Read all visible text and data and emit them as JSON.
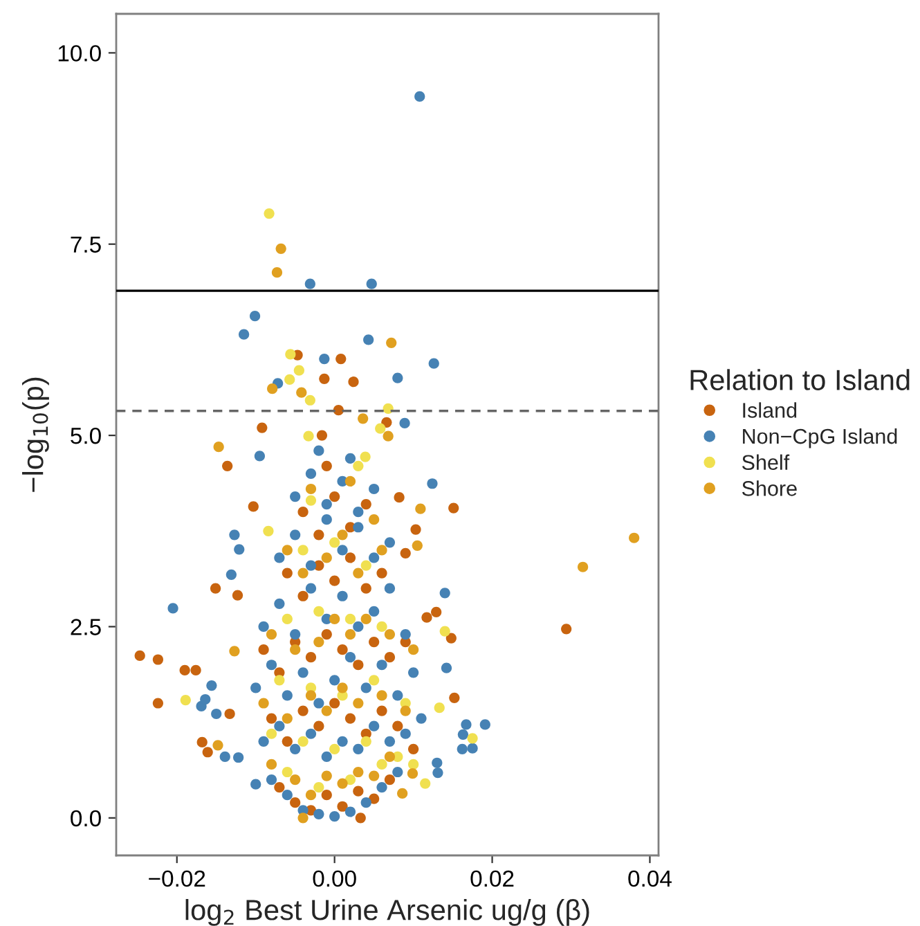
{
  "chart_data": {
    "type": "scatter",
    "xlabel": "log$_{2}$ Best Urine Arsenic ug/g (β)",
    "ylabel": "−log$_{10}$(p)",
    "legend_title": "Relation to Island",
    "legend": "right",
    "marker": "circle",
    "grid": false,
    "xlim": [
      -0.0277,
      0.0411
    ],
    "ylim": [
      -0.49,
      10.51
    ],
    "xticks": [
      {
        "value": -0.02,
        "label": "−0.02"
      },
      {
        "value": 0.0,
        "label": "0.00"
      },
      {
        "value": 0.02,
        "label": "0.02"
      },
      {
        "value": 0.04,
        "label": "0.04"
      }
    ],
    "yticks": [
      {
        "value": 0.0,
        "label": "0.0"
      },
      {
        "value": 2.5,
        "label": "2.5"
      },
      {
        "value": 5.0,
        "label": "5.0"
      },
      {
        "value": 7.5,
        "label": "7.5"
      },
      {
        "value": 10.0,
        "label": "10.0"
      }
    ],
    "ref_lines": [
      {
        "axis": "y",
        "value": 6.89,
        "color": "#000000",
        "line_style": "solid"
      },
      {
        "axis": "y",
        "value": 5.32,
        "color": "#666666",
        "line_style": "dashed"
      }
    ],
    "series": [
      {
        "name": "Island",
        "color": "#c8640f",
        "x": [
          0.0008,
          -0.0013,
          0.0024,
          -0.0092,
          -0.0047,
          -0.0016,
          0.0066,
          0.0005,
          -0.0136,
          0.0294,
          -0.0247,
          -0.0224,
          -0.019,
          -0.0176,
          -0.0224,
          -0.0168,
          -0.0161,
          -0.0151,
          -0.0103,
          0.0151,
          0.0152,
          0.0148,
          0.0129,
          0.0117,
          0.009,
          0.0103,
          0.0082,
          -0.0123,
          -0.0133,
          0.0033,
          -0.007,
          -0.005,
          -0.003,
          -0.001,
          0.001,
          0.003,
          0.005,
          0.007,
          -0.008,
          -0.006,
          -0.004,
          -0.002,
          0.0,
          0.002,
          0.004,
          0.006,
          0.008,
          0.01,
          -0.009,
          -0.007,
          -0.005,
          -0.003,
          -0.001,
          0.001,
          0.003,
          0.005,
          0.007,
          0.009,
          -0.006,
          -0.004,
          -0.002,
          0.0,
          0.002,
          0.004,
          0.006,
          -0.004,
          -0.002,
          0.0,
          0.002,
          0.004,
          -0.001
        ],
        "values": [
          6.0,
          5.74,
          5.7,
          5.1,
          6.05,
          5.0,
          5.17,
          5.33,
          4.6,
          2.47,
          2.12,
          2.07,
          1.93,
          1.93,
          1.5,
          0.99,
          0.86,
          3.0,
          4.07,
          4.05,
          1.57,
          2.35,
          2.69,
          2.62,
          3.46,
          3.77,
          4.19,
          2.91,
          1.36,
          0.0,
          0.4,
          0.2,
          0.1,
          0.3,
          0.15,
          0.35,
          0.25,
          0.5,
          1.3,
          1.0,
          1.4,
          1.2,
          1.5,
          1.3,
          1.1,
          1.4,
          1.2,
          0.9,
          2.2,
          1.9,
          2.3,
          2.1,
          2.4,
          2.2,
          2.0,
          2.3,
          2.1,
          2.3,
          3.2,
          2.9,
          3.3,
          3.1,
          3.4,
          3.0,
          3.2,
          4.0,
          3.7,
          4.2,
          3.8,
          4.1,
          4.6
        ]
      },
      {
        "name": "Non−CpG Island",
        "color": "#4682b4",
        "x": [
          0.0108,
          -0.0031,
          0.0047,
          -0.0101,
          -0.0115,
          0.0043,
          0.0126,
          -0.0013,
          0.008,
          -0.0072,
          0.0089,
          -0.0095,
          -0.0205,
          0.0191,
          0.0167,
          0.0163,
          0.0175,
          0.0162,
          0.014,
          0.0124,
          0.0142,
          -0.0169,
          -0.0164,
          -0.0156,
          -0.015,
          -0.0139,
          -0.0127,
          -0.0121,
          -0.0131,
          -0.0122,
          0.0131,
          0.013,
          -0.01,
          -0.008,
          -0.006,
          -0.004,
          -0.002,
          0.0,
          0.002,
          0.004,
          0.006,
          0.008,
          -0.009,
          -0.007,
          -0.005,
          -0.003,
          -0.001,
          0.001,
          0.003,
          0.005,
          0.007,
          0.009,
          0.011,
          -0.01,
          -0.008,
          -0.006,
          -0.004,
          -0.002,
          0.0,
          0.002,
          0.004,
          0.006,
          0.008,
          0.01,
          -0.009,
          -0.007,
          -0.005,
          -0.003,
          -0.001,
          0.001,
          0.003,
          0.005,
          0.007,
          0.009,
          -0.007,
          -0.005,
          -0.003,
          -0.001,
          0.001,
          0.003,
          0.005,
          0.007,
          -0.005,
          -0.003,
          -0.001,
          0.001,
          0.003,
          0.005,
          -0.002,
          0.002
        ],
        "values": [
          9.43,
          6.98,
          6.98,
          6.56,
          6.32,
          6.25,
          5.94,
          6.0,
          5.75,
          5.68,
          5.16,
          4.73,
          2.74,
          1.22,
          1.22,
          1.09,
          0.91,
          0.9,
          2.94,
          4.37,
          1.96,
          1.46,
          1.55,
          1.73,
          1.36,
          0.8,
          3.7,
          3.51,
          3.18,
          0.79,
          0.59,
          0.72,
          0.44,
          0.5,
          0.3,
          0.1,
          0.05,
          0.02,
          0.08,
          0.2,
          0.4,
          0.6,
          1.0,
          1.2,
          0.9,
          1.1,
          0.8,
          1.0,
          0.9,
          1.2,
          1.0,
          1.1,
          1.3,
          1.7,
          2.0,
          1.6,
          1.9,
          1.5,
          1.8,
          2.1,
          1.7,
          2.0,
          1.6,
          1.9,
          2.5,
          2.8,
          2.4,
          3.0,
          2.6,
          2.9,
          2.5,
          2.7,
          3.0,
          2.4,
          3.4,
          3.7,
          3.3,
          3.9,
          3.5,
          3.8,
          3.4,
          3.6,
          4.2,
          4.5,
          4.1,
          4.4,
          4.0,
          4.3,
          4.8,
          4.7
        ]
      },
      {
        "name": "Shelf",
        "color": "#f0e050",
        "x": [
          -0.0083,
          -0.0056,
          -0.0045,
          -0.0057,
          -0.0031,
          0.0068,
          0.0058,
          -0.0033,
          0.0039,
          -0.0189,
          0.0175,
          0.014,
          0.0133,
          0.0115,
          0.01,
          -0.0084,
          -0.006,
          -0.002,
          0.002,
          0.006,
          -0.008,
          -0.004,
          0.0,
          0.004,
          0.008,
          -0.007,
          -0.003,
          0.001,
          0.005,
          0.009,
          -0.006,
          -0.002,
          0.002,
          0.006,
          -0.004,
          0.0,
          0.004,
          -0.003,
          0.003
        ],
        "values": [
          7.9,
          6.06,
          5.85,
          5.73,
          5.46,
          5.35,
          5.09,
          4.99,
          4.72,
          1.54,
          1.04,
          2.44,
          1.44,
          0.45,
          0.7,
          3.75,
          0.6,
          0.4,
          0.5,
          0.7,
          1.1,
          1.0,
          0.9,
          1.0,
          0.8,
          1.8,
          1.7,
          1.6,
          1.8,
          1.5,
          2.6,
          2.7,
          2.6,
          2.5,
          3.5,
          3.6,
          3.3,
          4.15,
          4.6
        ]
      },
      {
        "name": "Shore",
        "color": "#e0a020",
        "x": [
          -0.0068,
          -0.0073,
          0.0072,
          -0.0079,
          0.0036,
          0.0068,
          -0.0147,
          -0.0042,
          0.038,
          0.0315,
          -0.0127,
          -0.0148,
          0.0105,
          0.0109,
          0.0099,
          0.0086,
          -0.004,
          -0.008,
          -0.005,
          -0.003,
          -0.001,
          0.001,
          0.003,
          0.005,
          0.007,
          -0.009,
          -0.006,
          -0.003,
          -0.001,
          0.001,
          0.003,
          0.006,
          0.009,
          -0.008,
          -0.005,
          -0.002,
          0.0,
          0.002,
          0.004,
          0.007,
          0.01,
          -0.006,
          -0.004,
          -0.001,
          0.001,
          0.003,
          0.006,
          -0.003,
          0.002,
          0.005
        ],
        "values": [
          7.44,
          7.13,
          6.21,
          5.61,
          5.22,
          4.99,
          4.85,
          5.56,
          3.66,
          3.28,
          2.18,
          0.95,
          3.56,
          4.04,
          0.58,
          0.32,
          0.0,
          0.7,
          0.5,
          0.3,
          0.55,
          0.45,
          0.6,
          0.55,
          0.8,
          1.5,
          1.3,
          1.6,
          1.4,
          1.7,
          1.5,
          1.6,
          1.4,
          2.4,
          2.2,
          2.3,
          2.6,
          2.4,
          2.6,
          2.4,
          2.2,
          3.5,
          3.2,
          3.4,
          3.7,
          3.2,
          3.5,
          4.3,
          4.4,
          3.9
        ]
      }
    ]
  }
}
